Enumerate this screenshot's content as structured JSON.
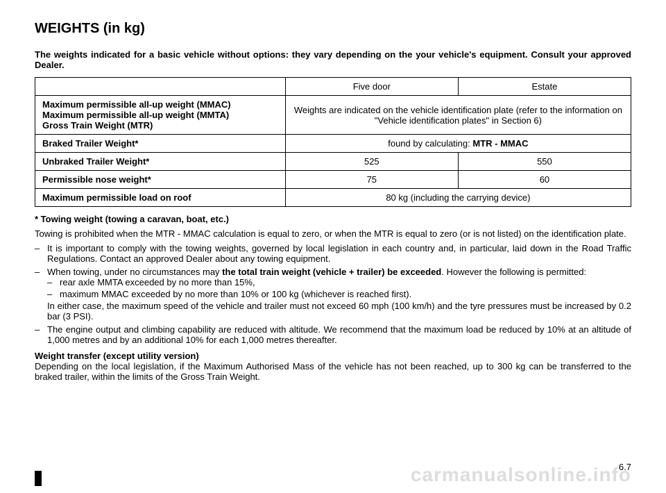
{
  "title": "WEIGHTS (in kg)",
  "intro": "The weights indicated for a basic vehicle without options: they vary depending on the your vehicle's equipment. Consult your approved Dealer.",
  "table": {
    "header_col1": "Five door",
    "header_col2": "Estate",
    "rows": {
      "r1_label": "Maximum permissible all-up weight (MMAC)\nMaximum permissible all-up weight (MMTA)\nGross Train Weight (MTR)",
      "r1_val": "Weights are indicated on the vehicle identification plate (refer to the information on \"Vehicle identification plates\" in Section 6)",
      "r2_label": "Braked Trailer Weight*",
      "r2_val_prefix": "found by calculating: ",
      "r2_val_bold": "MTR - MMAC",
      "r3_label": "Unbraked Trailer Weight*",
      "r3_v1": "525",
      "r3_v2": "550",
      "r4_label": "Permissible nose weight*",
      "r4_v1": "75",
      "r4_v2": "60",
      "r5_label": "Maximum permissible load on roof",
      "r5_val": "80 kg (including the carrying device)"
    }
  },
  "towing_title": "* Towing weight (towing a caravan, boat, etc.)",
  "towing_p1": "Towing is prohibited when the MTR - MMAC calculation is equal to zero, or when the MTR is equal to zero (or is not listed) on the identification plate.",
  "bullets": {
    "b1": "It is important to comply with the towing weights, governed by local legislation in each country and, in particular, laid down in the Road Traffic Regulations. Contact an approved Dealer about any towing equipment.",
    "b2_pre": "When towing, under no circumstances may ",
    "b2_bold": "the total train weight (vehicle + trailer) be exceeded",
    "b2_post": ". However the following is permitted:",
    "b2a": "rear axle MMTA exceeded by no more than 15%,",
    "b2b": "maximum MMAC exceeded by no more than 10% or 100 kg (whichever is reached first).",
    "b2_tail": "In either case, the maximum speed of the vehicle and trailer must not exceed 60 mph (100 km/h) and the tyre pressures must be increased by 0.2 bar (3 PSI).",
    "b3": "The engine output and climbing capability are reduced with altitude. We recommend that the maximum load be reduced by 10% at an altitude of 1,000 metres and by an additional 10% for each 1,000 metres thereafter."
  },
  "transfer_title": "Weight transfer (except utility version)",
  "transfer_body": "Depending on the local legislation, if the Maximum Authorised Mass of the vehicle has not been reached, up to 300 kg can be transferred to the braked trailer, within the limits of the Gross Train Weight.",
  "page_number": "6.7",
  "watermark": "carmanualsonline.info"
}
